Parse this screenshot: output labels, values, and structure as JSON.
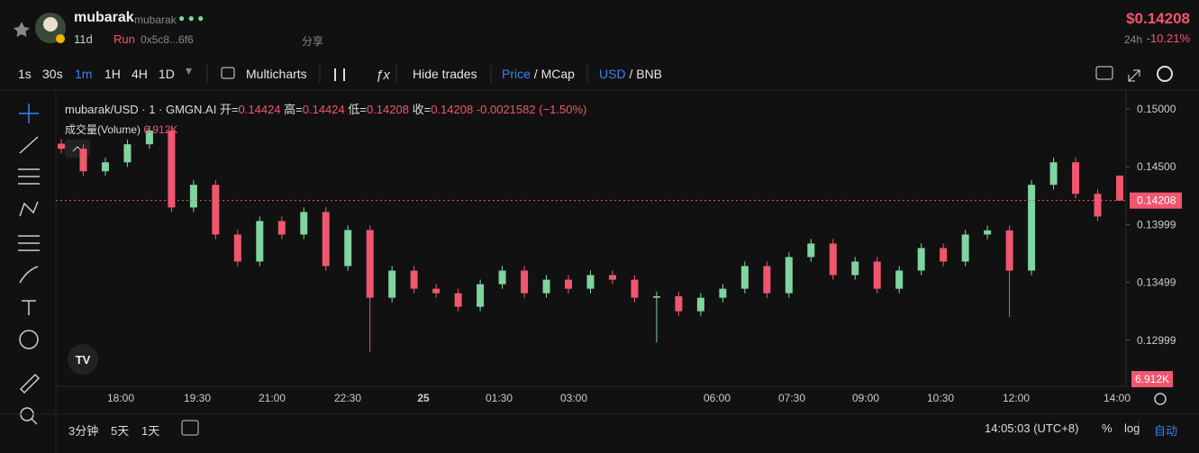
{
  "header": {
    "name": "mubarak",
    "symbol": "mubarak",
    "age": "11d",
    "status": "Run",
    "address": "0x5c8...6f6",
    "share": "分享",
    "price": "$0.14208",
    "change_label": "24h",
    "change": "-10.21%"
  },
  "toolbar": {
    "intervals": [
      "1s",
      "30s",
      "1m",
      "1H",
      "4H",
      "1D"
    ],
    "multicharts": "Multicharts",
    "hide_trades": "Hide trades",
    "price": "Price",
    "mcap": "MCap",
    "usd": "USD",
    "bnb": "BNB"
  },
  "legend": {
    "pair": "mubarak/USD · 1 · GMGN.AI",
    "ohlc": [
      {
        "label": "开=",
        "value": 0.14424
      },
      {
        "label": "高=",
        "value": 0.14424
      },
      {
        "label": "低=",
        "value": 0.14208
      },
      {
        "label": "收=",
        "value": 0.14208
      }
    ],
    "change": -0.0021582,
    "change_pct": "(−1.50%)",
    "volume_label": "成交量(Volume)",
    "volume": "6.912K"
  },
  "chart_data": {
    "type": "candlestick",
    "up_color": "#7fd4a0",
    "down_color": "#f0566e",
    "open": [
      0.147,
      0.14656,
      0.14461,
      0.14539,
      0.14695,
      0.14813,
      0.14148,
      0.14344,
      0.13914,
      0.1368,
      0.14031,
      0.13914,
      0.14109,
      0.13641,
      0.13953,
      0.13367,
      0.13602,
      0.13445,
      0.13406,
      0.13289,
      0.13484,
      0.13602,
      0.13406,
      0.13523,
      0.13445,
      0.13563,
      0.13523,
      0.13367,
      0.1338,
      0.1325,
      0.13367,
      0.13445,
      0.13641,
      0.13406,
      0.13719,
      0.13836,
      0.13563,
      0.1368,
      0.13445,
      0.13602,
      0.13797,
      0.1368,
      0.13914,
      0.1395,
      0.13602,
      0.14344,
      0.14539,
      0.14266,
      0.14424
    ],
    "high": [
      0.1474,
      0.14696,
      0.14579,
      0.14735,
      0.14853,
      0.14853,
      0.14384,
      0.14384,
      0.13954,
      0.14071,
      0.14071,
      0.14149,
      0.14149,
      0.13993,
      0.13993,
      0.13642,
      0.13642,
      0.13485,
      0.13446,
      0.13524,
      0.13642,
      0.13642,
      0.13563,
      0.13563,
      0.13603,
      0.13603,
      0.13563,
      0.1342,
      0.1342,
      0.13407,
      0.13485,
      0.13681,
      0.13681,
      0.13759,
      0.13876,
      0.13876,
      0.1372,
      0.1372,
      0.13642,
      0.13837,
      0.13837,
      0.13954,
      0.1399,
      0.1399,
      0.14384,
      0.14579,
      0.14579,
      0.14306,
      0.14424
    ],
    "low": [
      0.14616,
      0.14421,
      0.14421,
      0.14499,
      0.14655,
      0.14108,
      0.14108,
      0.13874,
      0.1364,
      0.1364,
      0.13874,
      0.13874,
      0.13601,
      0.13601,
      0.129,
      0.13327,
      0.13405,
      0.13366,
      0.13249,
      0.13249,
      0.13444,
      0.13366,
      0.13366,
      0.13405,
      0.13405,
      0.13483,
      0.13327,
      0.1298,
      0.1321,
      0.1321,
      0.13327,
      0.13405,
      0.13366,
      0.13366,
      0.13679,
      0.13523,
      0.13523,
      0.13405,
      0.13405,
      0.13562,
      0.1364,
      0.1364,
      0.13874,
      0.132,
      0.13562,
      0.14304,
      0.14226,
      0.1403,
      0.14208
    ],
    "close": [
      0.14656,
      0.14461,
      0.14539,
      0.14695,
      0.14813,
      0.14148,
      0.14344,
      0.13914,
      0.1368,
      0.14031,
      0.13914,
      0.14109,
      0.13641,
      0.13953,
      0.13367,
      0.13602,
      0.13445,
      0.13406,
      0.13289,
      0.13484,
      0.13602,
      0.13406,
      0.13523,
      0.13445,
      0.13563,
      0.13523,
      0.13367,
      0.1338,
      0.1325,
      0.13367,
      0.13445,
      0.13641,
      0.13406,
      0.13719,
      0.13836,
      0.13563,
      0.1368,
      0.13445,
      0.13602,
      0.13797,
      0.1368,
      0.13914,
      0.1395,
      0.13602,
      0.14344,
      0.14539,
      0.14266,
      0.1407,
      0.14208
    ],
    "x_labels": [
      "18:00",
      "19:30",
      "21:00",
      "22:30",
      "25",
      "01:30",
      "03:00",
      "06:00",
      "07:30",
      "09:00",
      "10:30",
      "12:00",
      "14:00"
    ],
    "ylim": [
      0.12608,
      0.15164
    ],
    "yticks": [
      {
        "value": 0.15,
        "label": "0.15000"
      },
      {
        "value": 0.145,
        "label": "0.14500"
      },
      {
        "value": 0.13999,
        "label": "0.13999"
      },
      {
        "value": 0.13499,
        "label": "0.13499"
      },
      {
        "value": 0.12999,
        "label": "0.12999"
      }
    ],
    "last_price": 0.14208
  },
  "footer": {
    "ranges": [
      "3分钟",
      "5天",
      "1天"
    ],
    "time": "14:05:03 (UTC+8)",
    "percent": "%",
    "log": "log",
    "auto": "自动"
  }
}
